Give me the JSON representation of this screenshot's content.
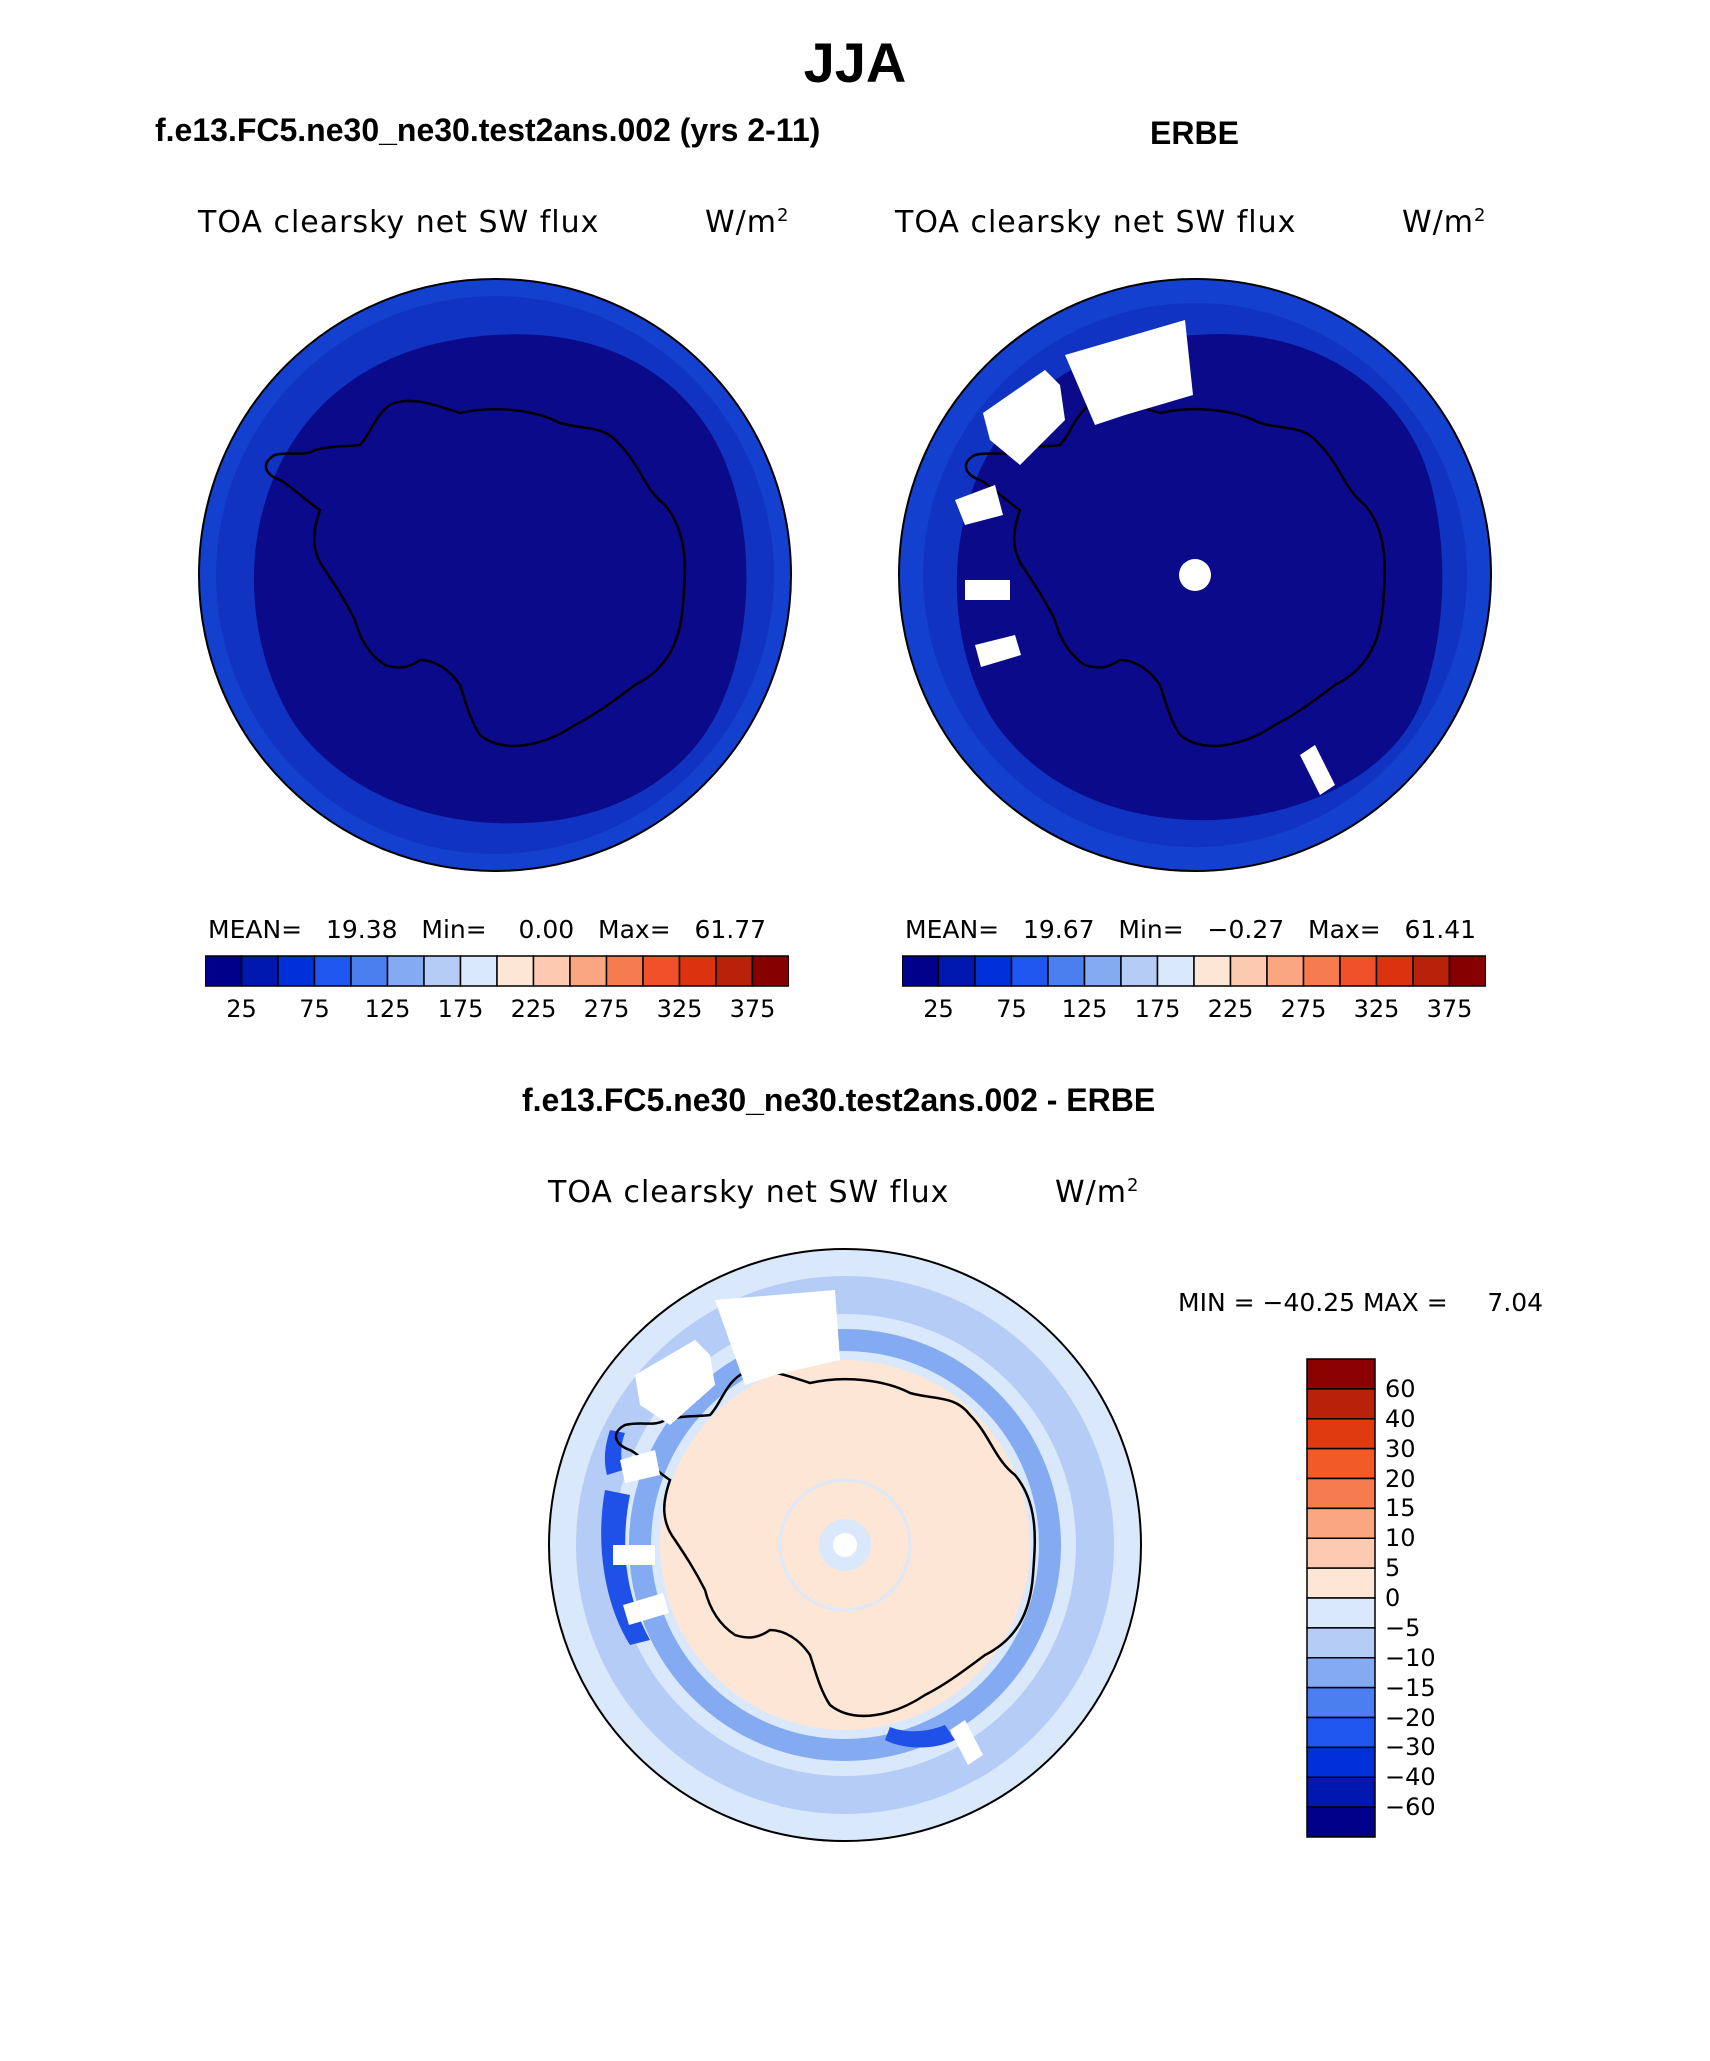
{
  "title": "JJA",
  "top_left": {
    "case_title": "f.e13.FC5.ne30_ne30.test2ans.002 (yrs 2-11)",
    "variable": "TOA clearsky net SW flux",
    "units_base": "W/m",
    "units_exp": "2",
    "stats": {
      "mean_label": "MEAN=",
      "mean": "19.38",
      "min_label": "Min=",
      "min": "0.00",
      "max_label": "Max=",
      "max": "61.77"
    }
  },
  "top_right": {
    "case_title": "ERBE",
    "variable": "TOA clearsky net SW flux",
    "units_base": "W/m",
    "units_exp": "2",
    "stats": {
      "mean_label": "MEAN=",
      "mean": "19.67",
      "min_label": "Min=",
      "min": "−0.27",
      "max_label": "Max=",
      "max": "61.41"
    }
  },
  "abs_colorbar": {
    "colors": [
      "#00008b",
      "#0018b0",
      "#0030d8",
      "#1f56f0",
      "#4b7ff0",
      "#84aaf2",
      "#b4ccf6",
      "#d9e8fb",
      "#fde6d6",
      "#fccab0",
      "#f9a681",
      "#f67b4f",
      "#f0502a",
      "#db3310",
      "#b8220a",
      "#860000"
    ],
    "tick_labels": [
      "25",
      "75",
      "125",
      "175",
      "225",
      "275",
      "325",
      "375"
    ]
  },
  "bottom": {
    "case_title": "f.e13.FC5.ne30_ne30.test2ans.002 - ERBE",
    "variable": "TOA clearsky net SW flux",
    "units_base": "W/m",
    "units_exp": "2",
    "minmax": {
      "min_label": "MIN = ",
      "min": "−40.25",
      "max_label": "MAX = ",
      "max": "7.04"
    }
  },
  "diff_colorbar": {
    "colors_top_to_bottom": [
      "#8b0000",
      "#b8220a",
      "#e03a10",
      "#f25a27",
      "#f67b4f",
      "#f9a681",
      "#fccab0",
      "#fde6d6",
      "#d9e8fb",
      "#b4ccf6",
      "#84aaf2",
      "#4b7ff0",
      "#1f56f0",
      "#0030d8",
      "#0018b0",
      "#00008b"
    ],
    "labels": [
      "60",
      "40",
      "30",
      "20",
      "15",
      "10",
      "5",
      "0",
      "−5",
      "−10",
      "−15",
      "−20",
      "−30",
      "−40",
      "−60"
    ]
  },
  "colors": {
    "deep_blue": "#0a0a8a",
    "mid_blue": "#1440d0",
    "bright_blue": "#1f50e8",
    "light_blue": "#d9e8fb",
    "pale_orange": "#fde6d6"
  }
}
